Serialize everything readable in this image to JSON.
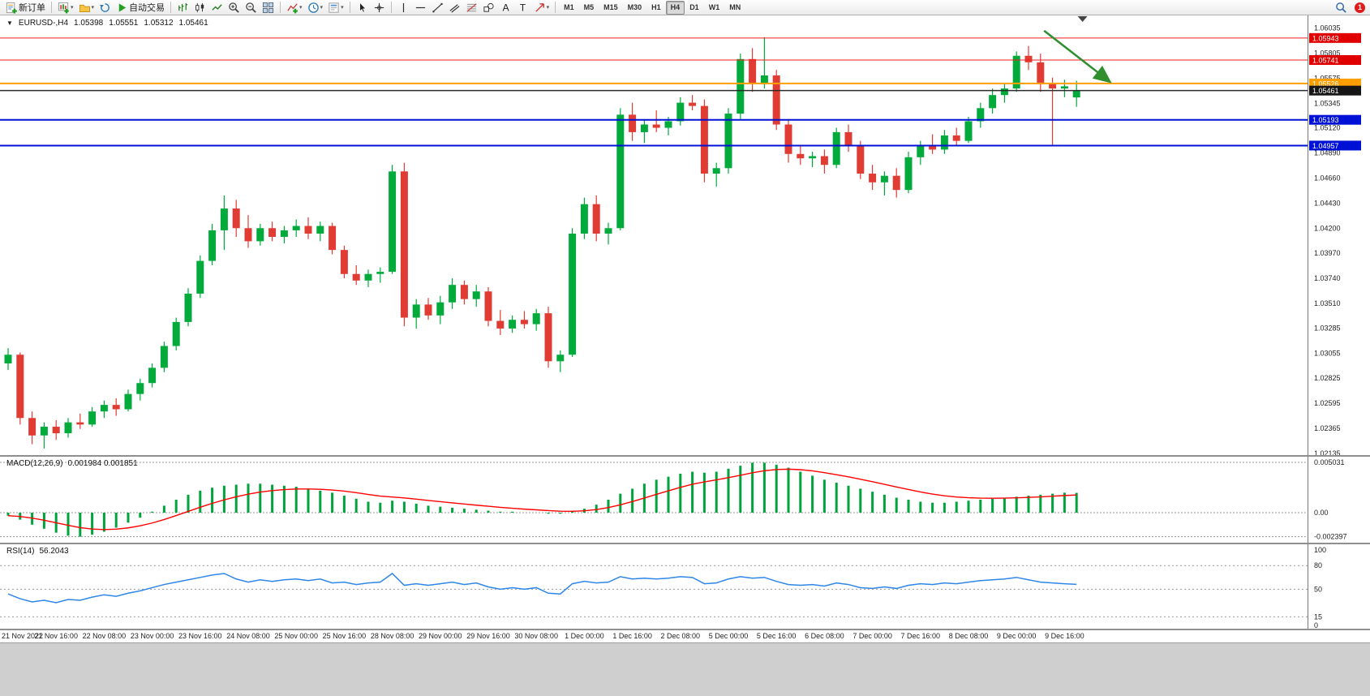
{
  "toolbar": {
    "groups": [
      {
        "items": [
          {
            "name": "new-order-button",
            "icon": "doc-plus-icon",
            "label": "新订单"
          }
        ]
      },
      {
        "items": [
          {
            "name": "new-chart-button",
            "icon": "chart-plus-icon",
            "caret": true
          },
          {
            "name": "profiles-button",
            "icon": "folder-icon",
            "caret": true
          },
          {
            "name": "refresh-button",
            "icon": "cycle-icon"
          },
          {
            "name": "autotrading-button",
            "icon": "play-icon",
            "label": "自动交易"
          }
        ]
      },
      {
        "items": [
          {
            "name": "bar-chart-button",
            "icon": "bars-icon"
          },
          {
            "name": "candlestick-chart-button",
            "icon": "candles-icon"
          },
          {
            "name": "line-chart-button",
            "icon": "line-icon"
          },
          {
            "name": "zoom-in-button",
            "icon": "zoom-in-icon"
          },
          {
            "name": "zoom-out-button",
            "icon": "zoom-out-icon"
          },
          {
            "name": "tile-windows-button",
            "icon": "tile-icon"
          }
        ]
      },
      {
        "items": [
          {
            "name": "indicators-button",
            "icon": "indicators-icon",
            "caret": true
          },
          {
            "name": "periods-button",
            "icon": "clock-icon",
            "caret": true
          },
          {
            "name": "templates-button",
            "icon": "template-icon",
            "caret": true
          }
        ]
      },
      {
        "items": [
          {
            "name": "cursor-button",
            "icon": "cursor-icon"
          },
          {
            "name": "crosshair-button",
            "icon": "crosshair-icon"
          }
        ]
      },
      {
        "items": [
          {
            "name": "vertical-line-button",
            "icon": "vline-icon"
          },
          {
            "name": "horizontal-line-button",
            "icon": "hline-icon"
          },
          {
            "name": "trendline-button",
            "icon": "trendline-icon"
          },
          {
            "name": "channel-button",
            "icon": "channel-icon"
          },
          {
            "name": "fibonacci-button",
            "icon": "fibonacci-icon"
          },
          {
            "name": "shapes-button",
            "icon": "shapes-icon"
          },
          {
            "name": "text-button",
            "icon": "text-a-icon"
          },
          {
            "name": "label-button",
            "icon": "label-t-icon"
          },
          {
            "name": "arrows-button",
            "icon": "arrow-icon",
            "caret": true
          }
        ]
      },
      {
        "type": "timeframes"
      }
    ],
    "timeframes": [
      "M1",
      "M5",
      "M15",
      "M30",
      "H1",
      "H4",
      "D1",
      "W1",
      "MN"
    ],
    "active_timeframe": "H4",
    "right": {
      "search_icon": "search-icon",
      "notification_count": "1"
    }
  },
  "chart_data": [
    {
      "type": "candlestick",
      "header": {
        "symbol_period": "EURUSD-,H4",
        "open": "1.05398",
        "high": "1.05551",
        "low": "1.05312",
        "close": "1.05461"
      },
      "ylim": [
        1.0212,
        1.0615
      ],
      "y_ticks": [
        "1.06035",
        "1.05805",
        "1.05575",
        "1.05345",
        "1.05120",
        "1.04890",
        "1.04660",
        "1.04430",
        "1.04200",
        "1.03970",
        "1.03740",
        "1.03510",
        "1.03285",
        "1.03055",
        "1.02825",
        "1.02595",
        "1.02365",
        "1.02135"
      ],
      "colors": {
        "up": "#00AB3C",
        "down": "#E03C34",
        "bg": "#FFFFFF"
      },
      "hlines": [
        {
          "price": 1.05943,
          "color": "#F21E1E",
          "width": 1,
          "tag": "1.05943",
          "tag_bg": "#E00000",
          "tag_fg": "#FFFFFF"
        },
        {
          "price": 1.05741,
          "color": "#F21E1E",
          "width": 1,
          "tag": "1.05741",
          "tag_bg": "#E00000",
          "tag_fg": "#FFFFFF"
        },
        {
          "price": 1.05526,
          "color": "#FF9E00",
          "width": 2,
          "tag": "1.05526",
          "tag_bg": "#FF9E00",
          "tag_fg": "#FFFFFF"
        },
        {
          "price": 1.05461,
          "color": "#2B2B2B",
          "width": 1.5,
          "tag": "1.05461",
          "tag_bg": "#151515",
          "tag_fg": "#FFFFFF"
        },
        {
          "price": 1.05193,
          "color": "#0011D6",
          "width": 2,
          "tag": "1.05193",
          "tag_bg": "#0011D6",
          "tag_fg": "#FFFFFF"
        },
        {
          "price": 1.04957,
          "color": "#0011D6",
          "width": 2,
          "tag": "1.04957",
          "tag_bg": "#0011D6",
          "tag_fg": "#FFFFFF"
        }
      ],
      "annotation_arrow": {
        "from_bar": 86.3,
        "from_price": 1.0601,
        "to_bar": 91.8,
        "to_price": 1.0554,
        "color": "#2F8F2F"
      },
      "shift_marker_bar": 89.5,
      "ohlc": [
        [
          1.0296,
          1.031,
          1.029,
          1.0304
        ],
        [
          1.0304,
          1.0306,
          1.024,
          1.0246
        ],
        [
          1.0246,
          1.0252,
          1.0222,
          1.023
        ],
        [
          1.023,
          1.0242,
          1.0218,
          1.0238
        ],
        [
          1.0238,
          1.0244,
          1.0226,
          1.0232
        ],
        [
          1.0232,
          1.0246,
          1.0228,
          1.0242
        ],
        [
          1.0242,
          1.025,
          1.0236,
          1.024
        ],
        [
          1.024,
          1.0256,
          1.0238,
          1.0252
        ],
        [
          1.0252,
          1.0262,
          1.0246,
          1.0258
        ],
        [
          1.0258,
          1.0264,
          1.0248,
          1.0254
        ],
        [
          1.0254,
          1.0272,
          1.0252,
          1.0268
        ],
        [
          1.0268,
          1.0282,
          1.0262,
          1.0278
        ],
        [
          1.0278,
          1.0296,
          1.0274,
          1.0292
        ],
        [
          1.0292,
          1.0316,
          1.0288,
          1.0312
        ],
        [
          1.0312,
          1.0338,
          1.0308,
          1.0334
        ],
        [
          1.0334,
          1.0365,
          1.033,
          1.036
        ],
        [
          1.036,
          1.0395,
          1.0356,
          1.039
        ],
        [
          1.039,
          1.0424,
          1.0386,
          1.0418
        ],
        [
          1.0418,
          1.045,
          1.04,
          1.0438
        ],
        [
          1.0438,
          1.0446,
          1.0412,
          1.042
        ],
        [
          1.042,
          1.0432,
          1.0402,
          1.0408
        ],
        [
          1.0408,
          1.0424,
          1.0404,
          1.042
        ],
        [
          1.042,
          1.0426,
          1.0408,
          1.0412
        ],
        [
          1.0412,
          1.0422,
          1.0406,
          1.0418
        ],
        [
          1.0418,
          1.0428,
          1.0412,
          1.0422
        ],
        [
          1.0422,
          1.043,
          1.041,
          1.0415
        ],
        [
          1.0415,
          1.0426,
          1.0408,
          1.0422
        ],
        [
          1.0422,
          1.0425,
          1.0396,
          1.04
        ],
        [
          1.04,
          1.0404,
          1.0374,
          1.0378
        ],
        [
          1.0378,
          1.0386,
          1.0368,
          1.0372
        ],
        [
          1.0372,
          1.0382,
          1.0366,
          1.0378
        ],
        [
          1.0378,
          1.0384,
          1.037,
          1.038
        ],
        [
          1.038,
          1.0478,
          1.0378,
          1.0472
        ],
        [
          1.0472,
          1.048,
          1.033,
          1.0338
        ],
        [
          1.0338,
          1.0355,
          1.0328,
          1.035
        ],
        [
          1.035,
          1.0356,
          1.0336,
          1.034
        ],
        [
          1.034,
          1.0358,
          1.0332,
          1.0352
        ],
        [
          1.0352,
          1.0374,
          1.0346,
          1.0368
        ],
        [
          1.0368,
          1.0372,
          1.035,
          1.0355
        ],
        [
          1.0355,
          1.0368,
          1.0348,
          1.0362
        ],
        [
          1.0362,
          1.0366,
          1.033,
          1.0335
        ],
        [
          1.0335,
          1.0345,
          1.0322,
          1.0328
        ],
        [
          1.0328,
          1.034,
          1.0324,
          1.0336
        ],
        [
          1.0336,
          1.0344,
          1.0328,
          1.0332
        ],
        [
          1.0332,
          1.0346,
          1.0326,
          1.0342
        ],
        [
          1.0342,
          1.0348,
          1.0292,
          1.0298
        ],
        [
          1.0298,
          1.0308,
          1.0288,
          1.0304
        ],
        [
          1.0304,
          1.042,
          1.0302,
          1.0415
        ],
        [
          1.0415,
          1.0448,
          1.041,
          1.0442
        ],
        [
          1.0442,
          1.045,
          1.0408,
          1.0415
        ],
        [
          1.0415,
          1.0425,
          1.0405,
          1.042
        ],
        [
          1.042,
          1.053,
          1.0418,
          1.0524
        ],
        [
          1.0524,
          1.0535,
          1.05,
          1.0508
        ],
        [
          1.0508,
          1.052,
          1.0498,
          1.0515
        ],
        [
          1.0515,
          1.0528,
          1.0508,
          1.0512
        ],
        [
          1.0512,
          1.0522,
          1.0505,
          1.0518
        ],
        [
          1.0518,
          1.054,
          1.0514,
          1.0535
        ],
        [
          1.0535,
          1.0542,
          1.0528,
          1.0532
        ],
        [
          1.0532,
          1.0538,
          1.0462,
          1.047
        ],
        [
          1.047,
          1.048,
          1.0458,
          1.0475
        ],
        [
          1.0475,
          1.053,
          1.047,
          1.0525
        ],
        [
          1.0525,
          1.058,
          1.052,
          1.0575
        ],
        [
          1.0575,
          1.0585,
          1.0545,
          1.0552
        ],
        [
          1.0552,
          1.0595,
          1.0548,
          1.056
        ],
        [
          1.056,
          1.0565,
          1.051,
          1.0515
        ],
        [
          1.0515,
          1.052,
          1.048,
          1.0488
        ],
        [
          1.0488,
          1.0496,
          1.0478,
          1.0484
        ],
        [
          1.0484,
          1.049,
          1.0476,
          1.0486
        ],
        [
          1.0486,
          1.0492,
          1.047,
          1.0478
        ],
        [
          1.0478,
          1.0512,
          1.0475,
          1.0508
        ],
        [
          1.0508,
          1.0515,
          1.049,
          1.0495
        ],
        [
          1.0495,
          1.05,
          1.0465,
          1.047
        ],
        [
          1.047,
          1.0478,
          1.0455,
          1.0462
        ],
        [
          1.0462,
          1.0472,
          1.045,
          1.0468
        ],
        [
          1.0468,
          1.0475,
          1.0448,
          1.0455
        ],
        [
          1.0455,
          1.049,
          1.0452,
          1.0485
        ],
        [
          1.0485,
          1.05,
          1.0478,
          1.0495
        ],
        [
          1.0495,
          1.0506,
          1.0488,
          1.0492
        ],
        [
          1.0492,
          1.051,
          1.0488,
          1.0505
        ],
        [
          1.0505,
          1.0512,
          1.0495,
          1.05
        ],
        [
          1.05,
          1.0522,
          1.0498,
          1.0518
        ],
        [
          1.0518,
          1.0535,
          1.0512,
          1.053
        ],
        [
          1.053,
          1.0548,
          1.0525,
          1.0542
        ],
        [
          1.0542,
          1.0552,
          1.0535,
          1.0548
        ],
        [
          1.0548,
          1.0582,
          1.0545,
          1.0578
        ],
        [
          1.0578,
          1.0587,
          1.0565,
          1.0572
        ],
        [
          1.0572,
          1.058,
          1.0545,
          1.0552
        ],
        [
          1.0552,
          1.0558,
          1.0495,
          1.0548
        ],
        [
          1.0548,
          1.0556,
          1.054,
          1.055
        ],
        [
          1.05398,
          1.05551,
          1.05312,
          1.05461
        ]
      ],
      "x_labels": [
        {
          "bar": 0,
          "label": "21 Nov 2022"
        },
        {
          "bar": 4,
          "label": "21 Nov 16:00"
        },
        {
          "bar": 8,
          "label": "22 Nov 08:00"
        },
        {
          "bar": 12,
          "label": "23 Nov 00:00"
        },
        {
          "bar": 16,
          "label": "23 Nov 16:00"
        },
        {
          "bar": 20,
          "label": "24 Nov 08:00"
        },
        {
          "bar": 24,
          "label": "25 Nov 00:00"
        },
        {
          "bar": 28,
          "label": "25 Nov 16:00"
        },
        {
          "bar": 32,
          "label": "28 Nov 08:00"
        },
        {
          "bar": 36,
          "label": "29 Nov 00:00"
        },
        {
          "bar": 40,
          "label": "29 Nov 16:00"
        },
        {
          "bar": 44,
          "label": "30 Nov 08:00"
        },
        {
          "bar": 48,
          "label": "1 Dec 00:00"
        },
        {
          "bar": 52,
          "label": "1 Dec 16:00"
        },
        {
          "bar": 56,
          "label": "2 Dec 08:00"
        },
        {
          "bar": 60,
          "label": "5 Dec 00:00"
        },
        {
          "bar": 64,
          "label": "5 Dec 16:00"
        },
        {
          "bar": 68,
          "label": "6 Dec 08:00"
        },
        {
          "bar": 72,
          "label": "7 Dec 00:00"
        },
        {
          "bar": 76,
          "label": "7 Dec 16:00"
        },
        {
          "bar": 80,
          "label": "8 Dec 08:00"
        },
        {
          "bar": 84,
          "label": "9 Dec 00:00"
        },
        {
          "bar": 88,
          "label": "9 Dec 16:00"
        }
      ]
    },
    {
      "type": "macd",
      "label": "MACD(12,26,9)",
      "values_label": "0.001984 0.001851",
      "ylim": [
        -0.003,
        0.0056
      ],
      "levels": [
        {
          "v": 0.005031,
          "label": "0.005031"
        },
        {
          "v": 0,
          "label": "0.00"
        },
        {
          "v": -0.002397,
          "label": "-0.002397"
        }
      ],
      "colors": {
        "hist": "#00A33C",
        "signal": "#FF0000"
      },
      "values": [
        -0.0003,
        -0.0007,
        -0.0012,
        -0.0016,
        -0.002,
        -0.0023,
        -0.0024,
        -0.0022,
        -0.0019,
        -0.0015,
        -0.001,
        -0.0005,
        0.0001,
        0.0007,
        0.0013,
        0.0018,
        0.0022,
        0.0025,
        0.0027,
        0.0028,
        0.0029,
        0.0029,
        0.0028,
        0.0027,
        0.0026,
        0.0024,
        0.0022,
        0.002,
        0.0017,
        0.0014,
        0.0011,
        0.001,
        0.0012,
        0.0011,
        0.0009,
        0.0007,
        0.0006,
        0.0005,
        0.0004,
        0.0003,
        0.0002,
        0.0001,
        0.0001,
        0.0,
        0.0,
        -0.0001,
        -0.0001,
        0.0001,
        0.0004,
        0.0008,
        0.0013,
        0.0019,
        0.0024,
        0.0029,
        0.0033,
        0.0036,
        0.0039,
        0.0041,
        0.004,
        0.0041,
        0.0044,
        0.0047,
        0.005,
        0.005,
        0.0048,
        0.0045,
        0.0041,
        0.0037,
        0.0033,
        0.003,
        0.0027,
        0.0024,
        0.0021,
        0.0018,
        0.0015,
        0.0013,
        0.0011,
        0.001,
        0.001,
        0.0011,
        0.0012,
        0.0013,
        0.0014,
        0.0015,
        0.0016,
        0.0017,
        0.0018,
        0.0019,
        0.002,
        0.001984
      ]
    },
    {
      "type": "rsi",
      "label": "RSI(14)",
      "value_label": "56.2043",
      "ylim": [
        0,
        107
      ],
      "ticks": [
        {
          "v": 100,
          "label": "100"
        },
        {
          "v": 80,
          "label": "80"
        },
        {
          "v": 50,
          "label": "50"
        },
        {
          "v": 15,
          "label": "15"
        },
        {
          "v": 0,
          "label": "0"
        }
      ],
      "dashed_levels": [
        80,
        50,
        15
      ],
      "color": "#2E86E8",
      "values": [
        44,
        38,
        34,
        36,
        33,
        37,
        36,
        40,
        43,
        41,
        45,
        48,
        52,
        56,
        59,
        62,
        65,
        68,
        70,
        63,
        59,
        62,
        60,
        62,
        63,
        61,
        63,
        58,
        59,
        56,
        58,
        59,
        70,
        55,
        57,
        55,
        57,
        59,
        56,
        58,
        53,
        50,
        52,
        50,
        52,
        45,
        44,
        57,
        60,
        58,
        59,
        66,
        63,
        64,
        63,
        64,
        66,
        65,
        57,
        58,
        63,
        66,
        64,
        65,
        60,
        56,
        55,
        56,
        54,
        58,
        56,
        52,
        51,
        53,
        51,
        55,
        57,
        56,
        58,
        57,
        59,
        61,
        62,
        63,
        65,
        62,
        59,
        58,
        57,
        56.2
      ]
    }
  ]
}
